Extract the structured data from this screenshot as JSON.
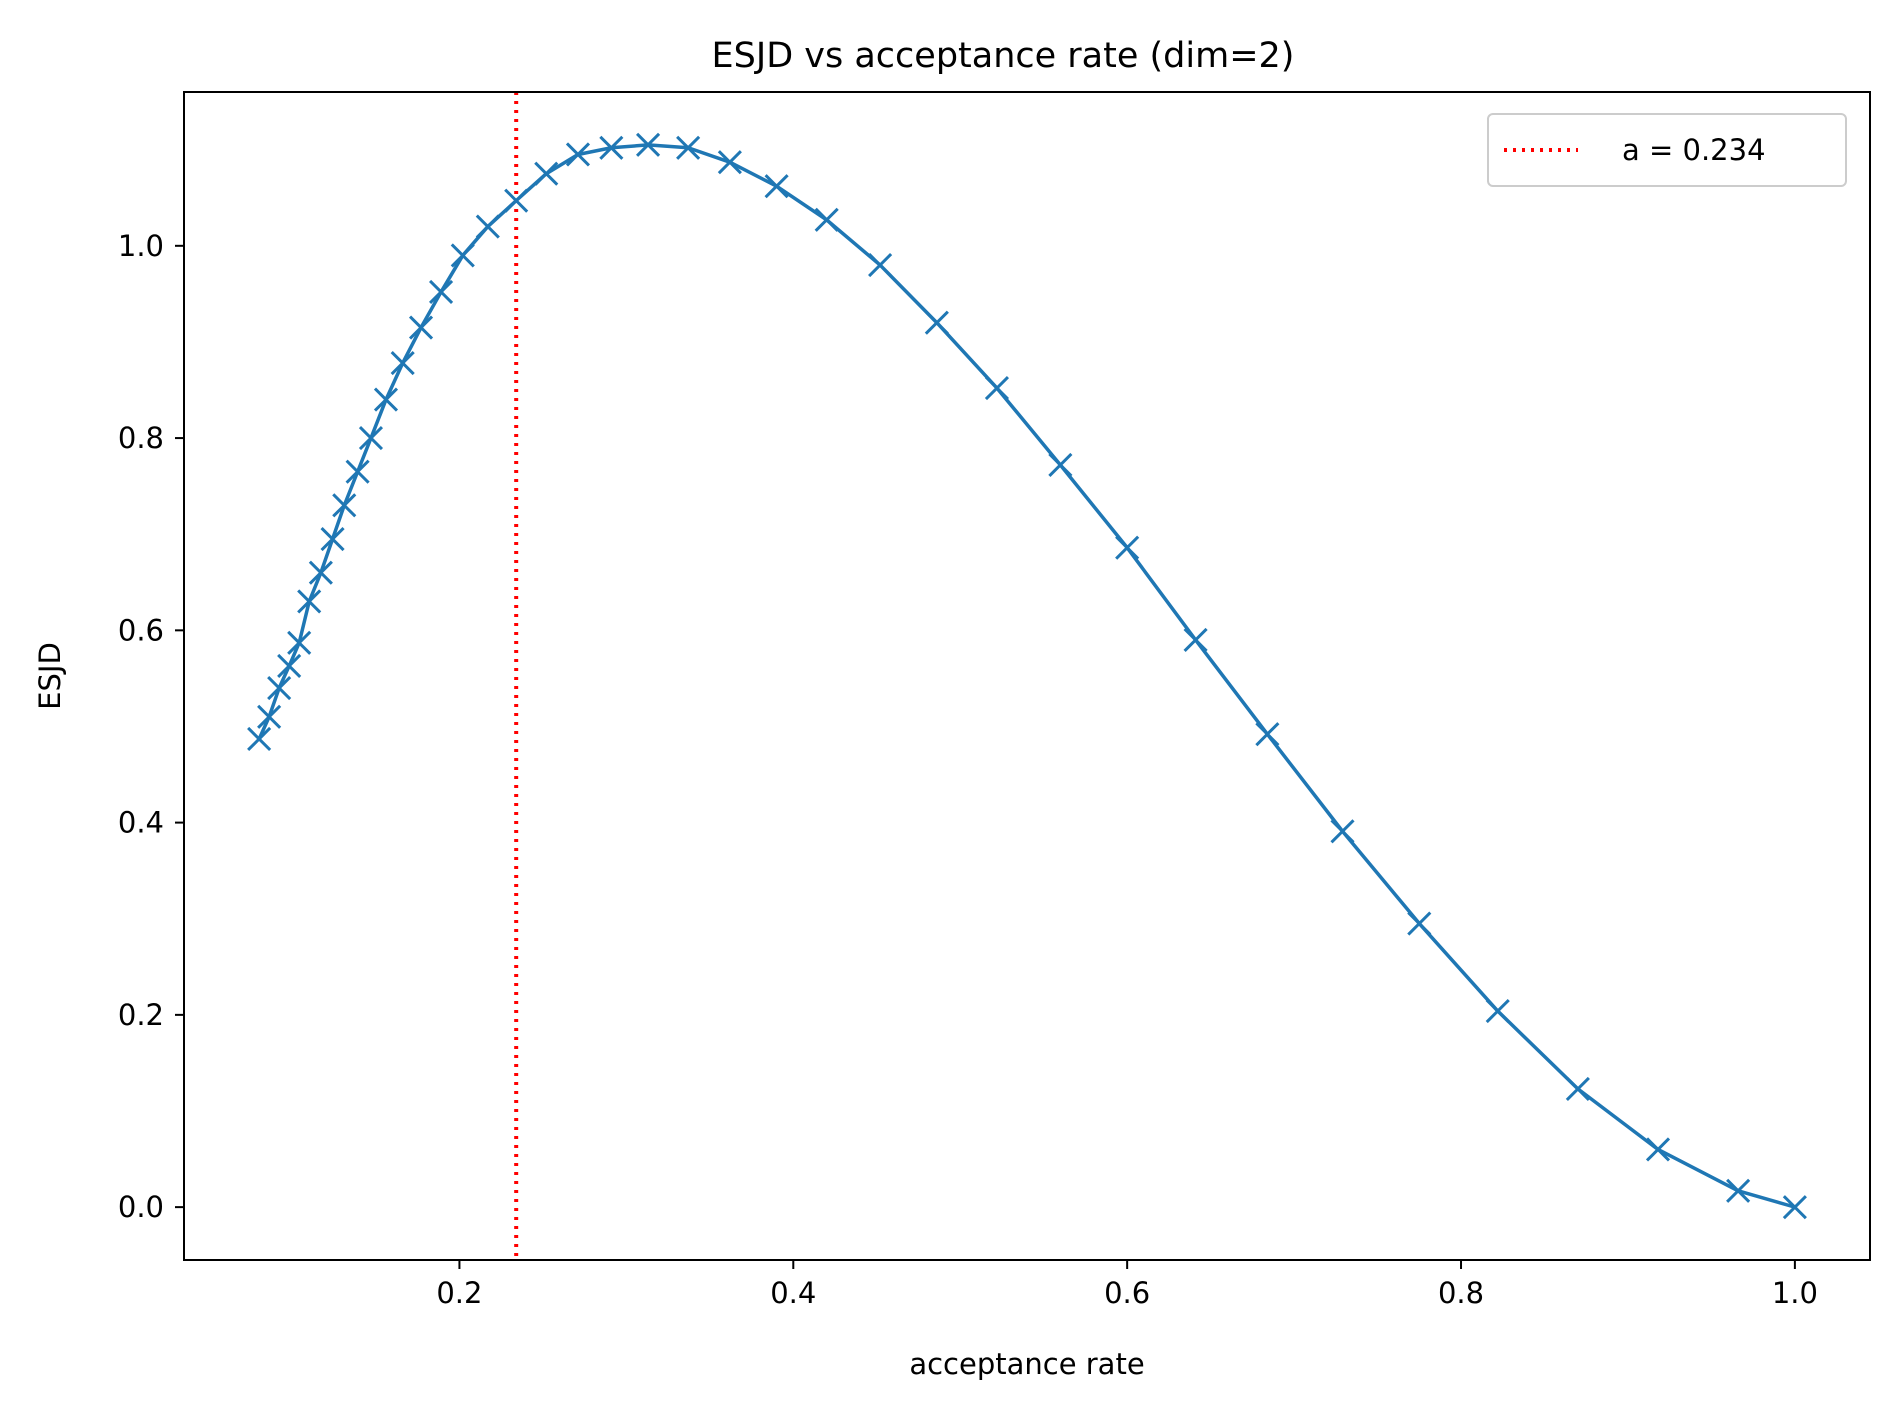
{
  "chart_data": {
    "type": "line",
    "title": "ESJD vs acceptance rate (dim=2)",
    "xlabel": "acceptance rate",
    "ylabel": "ESJD",
    "xlim": [
      0.035,
      1.045
    ],
    "ylim": [
      -0.055,
      1.16
    ],
    "x_ticks": [
      0.2,
      0.4,
      0.6,
      0.8,
      1.0
    ],
    "x_tick_labels": [
      "0.2",
      "0.4",
      "0.6",
      "0.8",
      "1.0"
    ],
    "y_ticks": [
      0.0,
      0.2,
      0.4,
      0.6,
      0.8,
      1.0
    ],
    "y_tick_labels": [
      "0.0",
      "0.2",
      "0.4",
      "0.6",
      "0.8",
      "1.0"
    ],
    "grid": false,
    "legend_position": "top-right",
    "series": [
      {
        "color": "#1f77b4",
        "marker": "x",
        "x": [
          0.08,
          0.086,
          0.092,
          0.098,
          0.104,
          0.11,
          0.117,
          0.124,
          0.131,
          0.139,
          0.147,
          0.156,
          0.166,
          0.177,
          0.189,
          0.202,
          0.217,
          0.234,
          0.252,
          0.271,
          0.291,
          0.313,
          0.337,
          0.362,
          0.39,
          0.42,
          0.452,
          0.486,
          0.522,
          0.56,
          0.6,
          0.641,
          0.684,
          0.729,
          0.775,
          0.822,
          0.87,
          0.918,
          0.966,
          1.0
        ],
        "y": [
          0.487,
          0.51,
          0.54,
          0.563,
          0.587,
          0.63,
          0.66,
          0.695,
          0.73,
          0.765,
          0.8,
          0.84,
          0.878,
          0.915,
          0.952,
          0.99,
          1.02,
          1.047,
          1.075,
          1.095,
          1.102,
          1.105,
          1.102,
          1.087,
          1.062,
          1.027,
          0.98,
          0.92,
          0.852,
          0.772,
          0.686,
          0.59,
          0.492,
          0.391,
          0.295,
          0.204,
          0.123,
          0.06,
          0.017,
          0.0
        ]
      }
    ],
    "reference_line": {
      "x": 0.234,
      "color": "#ff0000",
      "style": "dotted",
      "legend_label": "a = 0.234"
    }
  }
}
